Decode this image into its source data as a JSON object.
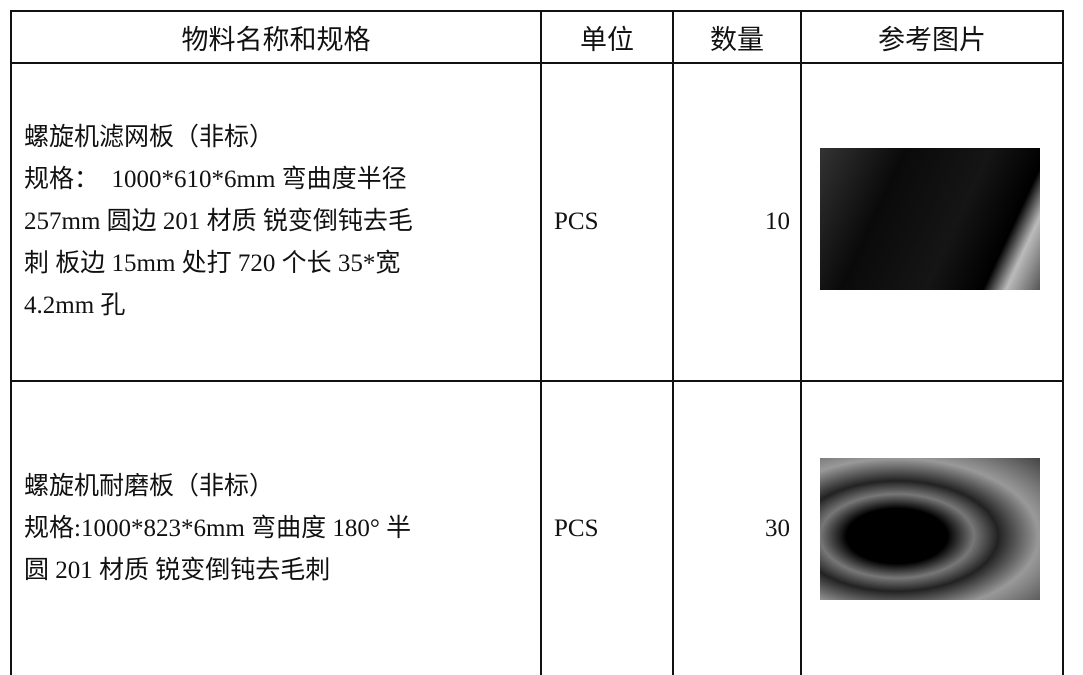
{
  "table": {
    "header": [
      "物料名称和规格",
      "单位",
      "数量",
      "参考图片"
    ],
    "rows": [
      {
        "name_lines": [
          "螺旋机滤网板（非标）",
          "规格：  1000*610*6mm 弯曲度半径",
          "257mm 圆边 201 材质 锐变倒钝去毛",
          "刺 板边 15mm 处打 720 个长 35*宽",
          "4.2mm 孔"
        ],
        "unit": "PCS",
        "qty": 10
      },
      {
        "name_lines": [
          "螺旋机耐磨板（非标）",
          "规格:1000*823*6mm 弯曲度 180° 半",
          "圆 201 材质 锐变倒钝去毛刺"
        ],
        "unit": "PCS",
        "qty": 30
      }
    ]
  }
}
